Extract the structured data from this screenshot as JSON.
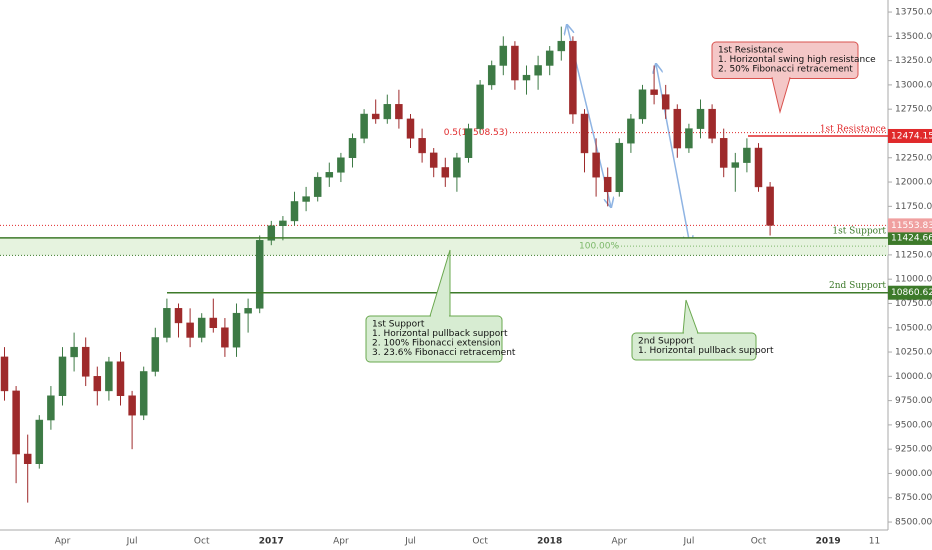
{
  "chart_data": {
    "type": "candlestick",
    "categories": [
      null,
      null,
      null,
      null,
      null,
      "Apr",
      null,
      null,
      null,
      null,
      null,
      "Jul",
      null,
      null,
      null,
      null,
      null,
      "Oct",
      null,
      null,
      null,
      null,
      null,
      "2017",
      null,
      null,
      null,
      null,
      null,
      "Apr",
      null,
      null,
      null,
      null,
      null,
      "Jul",
      null,
      null,
      null,
      null,
      null,
      "Oct",
      null,
      null,
      null,
      null,
      null,
      "2018",
      null,
      null,
      null,
      null,
      null,
      "Apr",
      null,
      null,
      null,
      null,
      null,
      "Jul",
      null,
      null,
      null,
      null,
      null,
      "Oct",
      null,
      null,
      null,
      null,
      null,
      "2019",
      null,
      null,
      null,
      "11"
    ],
    "open": [
      10200,
      9850,
      9200,
      9100,
      9550,
      9800,
      10200,
      10300,
      10000,
      9850,
      10150,
      9800,
      9600,
      10050,
      10400,
      10700,
      10550,
      10400,
      10600,
      10500,
      10300,
      10650,
      10700,
      11400,
      11550,
      11600,
      11800,
      11850,
      12050,
      12100,
      12250,
      12450,
      12700,
      12650,
      12800,
      12650,
      12450,
      12300,
      12150,
      12050,
      12250,
      12550,
      13000,
      13200,
      13400,
      13050,
      13100,
      13200,
      13350,
      13450,
      12700,
      12300,
      12050,
      11900,
      12400,
      12650,
      12950,
      12900,
      12750,
      12350,
      12550,
      12750,
      12450,
      12150,
      12200,
      12350,
      11950,
      null,
      null,
      null,
      null,
      null,
      null,
      null,
      null,
      null
    ],
    "high": [
      10300,
      9900,
      9400,
      9600,
      9900,
      10300,
      10450,
      10400,
      10100,
      10200,
      10250,
      9850,
      10100,
      10500,
      10800,
      10750,
      10700,
      10650,
      10800,
      10600,
      10750,
      10800,
      11450,
      11600,
      11650,
      11900,
      11950,
      12100,
      12200,
      12300,
      12500,
      12750,
      12850,
      12900,
      12950,
      12700,
      12550,
      12350,
      12250,
      12300,
      12600,
      13050,
      13250,
      13500,
      13450,
      13200,
      13300,
      13400,
      13600,
      13500,
      12750,
      12450,
      12150,
      12450,
      12700,
      13000,
      13200,
      13000,
      12800,
      12600,
      12850,
      12800,
      12550,
      12300,
      12450,
      12400,
      12000,
      null,
      null,
      null,
      null,
      null,
      null,
      null,
      null,
      null
    ],
    "low": [
      9750,
      8900,
      8700,
      9050,
      9450,
      9700,
      10050,
      9900,
      9700,
      9750,
      9700,
      9250,
      9550,
      10000,
      10350,
      10400,
      10300,
      10350,
      10450,
      10200,
      10200,
      10450,
      10650,
      11350,
      11400,
      11550,
      11700,
      11800,
      11950,
      12000,
      12150,
      12400,
      12600,
      12600,
      12550,
      12350,
      12200,
      12050,
      11950,
      11900,
      12200,
      12500,
      12950,
      13100,
      12950,
      12900,
      12950,
      13100,
      13250,
      12600,
      12100,
      11850,
      11750,
      11850,
      12300,
      12600,
      12800,
      12650,
      12250,
      12300,
      12450,
      12400,
      12050,
      11900,
      12100,
      11900,
      11450,
      null,
      null,
      null,
      null,
      null,
      null,
      null,
      null,
      null
    ],
    "close": [
      9850,
      9200,
      9100,
      9550,
      9800,
      10200,
      10300,
      10000,
      9850,
      10150,
      9800,
      9600,
      10050,
      10400,
      10700,
      10550,
      10400,
      10600,
      10500,
      10300,
      10650,
      10700,
      11400,
      11550,
      11600,
      11800,
      11850,
      12050,
      12100,
      12250,
      12450,
      12700,
      12650,
      12800,
      12650,
      12450,
      12300,
      12150,
      12050,
      12250,
      12550,
      13000,
      13200,
      13400,
      13050,
      13100,
      13200,
      13350,
      13450,
      12700,
      12300,
      12050,
      11900,
      12400,
      12650,
      12950,
      12900,
      12750,
      12350,
      12550,
      12750,
      12450,
      12150,
      12200,
      12350,
      11950,
      11553.83,
      null,
      null,
      null,
      null,
      null,
      null,
      null,
      null,
      null
    ],
    "up_color": "#3d7a45",
    "down_color": "#9e2a2b",
    "ylim": [
      8418,
      13874
    ],
    "yticks": [
      {
        "value": 8500,
        "label": "8500.00"
      },
      {
        "value": 8750,
        "label": "8750.00"
      },
      {
        "value": 9000,
        "label": "9000.00"
      },
      {
        "value": 9250,
        "label": "9250.00"
      },
      {
        "value": 9500,
        "label": "9500.00"
      },
      {
        "value": 9750,
        "label": "9750.00"
      },
      {
        "value": 10000,
        "label": "10000.00"
      },
      {
        "value": 10250,
        "label": "10250.00"
      },
      {
        "value": 10500,
        "label": "10500.00"
      },
      {
        "value": 10750,
        "label": "10750.00"
      },
      {
        "value": 11000,
        "label": "11000.00"
      },
      {
        "value": 11250,
        "label": "11250.00"
      },
      {
        "value": 11500,
        "label": "11500.00"
      },
      {
        "value": 11750,
        "label": "11750.00"
      },
      {
        "value": 12000,
        "label": "12000.00"
      },
      {
        "value": 12250,
        "label": "12250.00"
      },
      {
        "value": 12500,
        "label": "12500.00"
      },
      {
        "value": 12750,
        "label": "12750.00"
      },
      {
        "value": 13000,
        "label": "13000.00"
      },
      {
        "value": 13250,
        "label": "13250.00"
      },
      {
        "value": 13500,
        "label": "13500.00"
      },
      {
        "value": 13750,
        "label": "13750.00"
      }
    ],
    "last_price": {
      "value": 11553.83,
      "color": "#f0a0a0"
    },
    "levels": [
      {
        "name": "1st Resistance",
        "value": 12474.15,
        "color": "#e0292b"
      },
      {
        "name": "1st Support",
        "value": 11424.66,
        "color": "#3d7a2a"
      },
      {
        "name": "2nd Support",
        "value": 10860.62,
        "color": "#3d7a2a"
      }
    ],
    "support_zone": {
      "low": 11245,
      "high": 11424.66,
      "color": "#e6f3df"
    },
    "fib_levels": [
      {
        "label": "0.5(12508.53)",
        "price": 12508.53,
        "color": "#e0292b"
      },
      {
        "label": "100.00%",
        "price": 11340,
        "color": "#7cb86a"
      }
    ],
    "notes": [
      {
        "lines": [
          "1st Resistance",
          "1. Horizontal swing high resistance",
          "2. 50% Fibonacci retracement"
        ]
      },
      {
        "lines": [
          "1st Support",
          "1. Horizontal pullback support",
          "2. 100% Fibonacci extension",
          "3. 23.6% Fibonacci retracement"
        ]
      },
      {
        "lines": [
          "2nd Support",
          "1. Horizontal pullback support"
        ]
      }
    ]
  }
}
